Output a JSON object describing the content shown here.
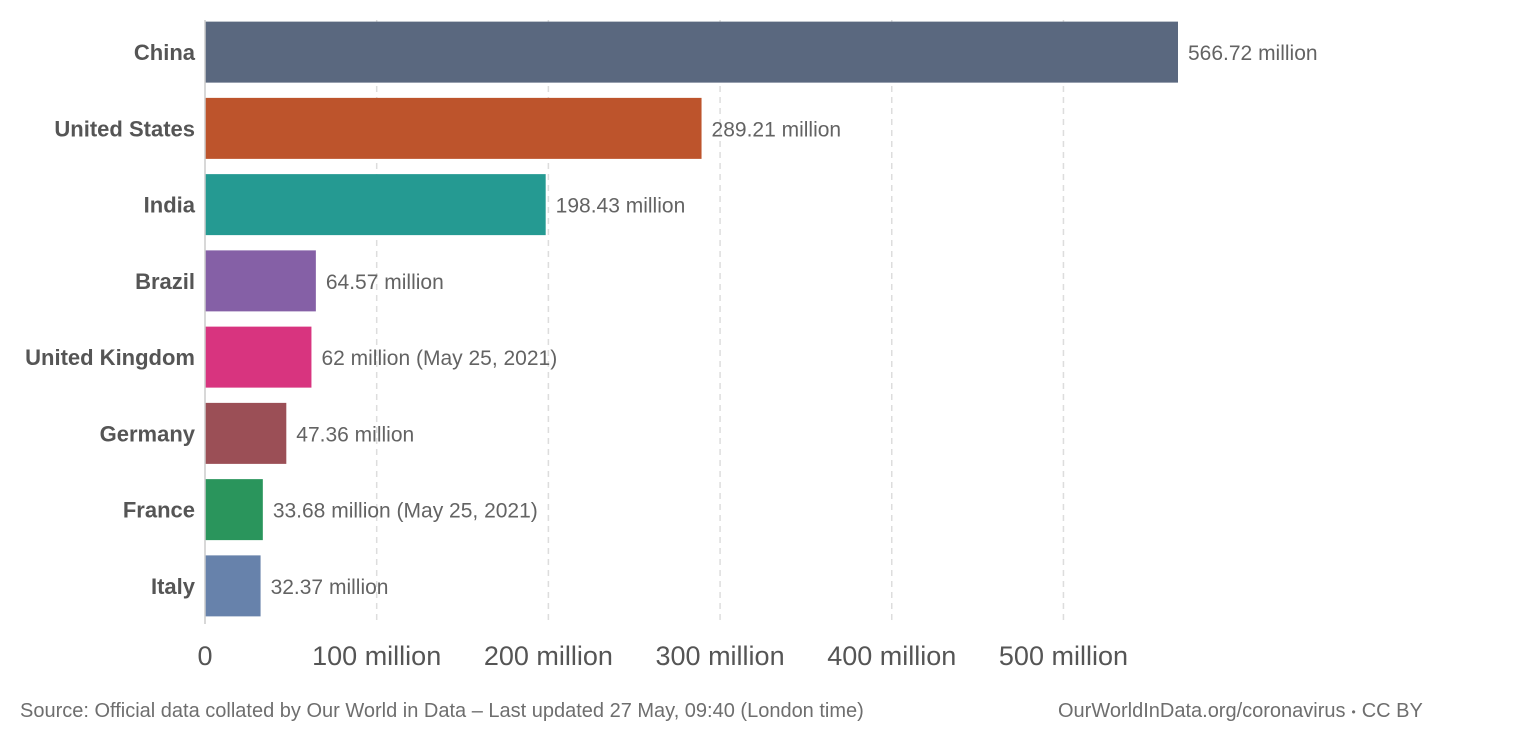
{
  "chart_data": {
    "type": "bar",
    "orientation": "horizontal",
    "categories": [
      "China",
      "United States",
      "India",
      "Brazil",
      "United Kingdom",
      "Germany",
      "France",
      "Italy"
    ],
    "values": [
      566.72,
      289.21,
      198.43,
      64.57,
      62,
      47.36,
      33.68,
      32.37
    ],
    "value_labels": [
      "566.72 million",
      "289.21 million",
      "198.43 million",
      "64.57 million",
      "62 million (May 25, 2021)",
      "47.36 million",
      "33.68 million (May 25, 2021)",
      "32.37 million"
    ],
    "colors": [
      "#5a687f",
      "#bd542c",
      "#259a92",
      "#8560a6",
      "#d8347f",
      "#9b4f56",
      "#2a955c",
      "#6782ab"
    ],
    "xlim": [
      0,
      566.72
    ],
    "xticks": [
      0,
      100,
      200,
      300,
      400,
      500
    ],
    "xtick_labels": [
      "0",
      "100 million",
      "200 million",
      "300 million",
      "400 million",
      "500 million"
    ],
    "grid": "vertical dashed",
    "title": "",
    "xlabel": "",
    "ylabel": ""
  },
  "footer": {
    "source": "Source: Official data collated by Our World in Data – Last updated 27 May, 09:40 (London time)",
    "site": "OurWorldInData.org/coronavirus",
    "separator": "•",
    "license": "CC BY"
  }
}
